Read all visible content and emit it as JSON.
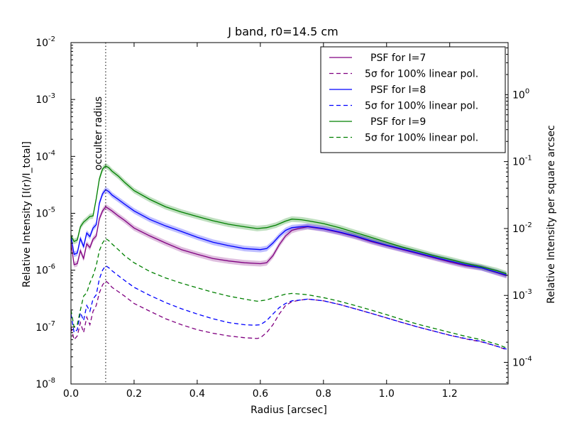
{
  "chart_data": {
    "type": "line",
    "title": "J band, r0=14.5 cm",
    "xlabel": "Radius [arcsec]",
    "ylabel": "Relative Intensity   [I(r)/I_total]",
    "ylabel_right": "Relative Intensity per square arcsec",
    "xlim": [
      0.0,
      1.385
    ],
    "ylim": [
      1e-08,
      0.01
    ],
    "yscale": "log",
    "right_ylim": [
      4.75e-05,
      6.0
    ],
    "right_yscale": "log",
    "x_ticks": [
      "0.0",
      "0.2",
      "0.4",
      "0.6",
      "0.8",
      "1.0",
      "1.2"
    ],
    "x_tick_values": [
      0.0,
      0.2,
      0.4,
      0.6,
      0.8,
      1.0,
      1.2
    ],
    "y_ticks": [
      {
        "base": "10",
        "exp": "-8",
        "value": 1e-08
      },
      {
        "base": "10",
        "exp": "-7",
        "value": 1e-07
      },
      {
        "base": "10",
        "exp": "-6",
        "value": 1e-06
      },
      {
        "base": "10",
        "exp": "-5",
        "value": 1e-05
      },
      {
        "base": "10",
        "exp": "-4",
        "value": 0.0001
      },
      {
        "base": "10",
        "exp": "-3",
        "value": 0.001
      },
      {
        "base": "10",
        "exp": "-2",
        "value": 0.01
      }
    ],
    "right_y_ticks": [
      {
        "base": "10",
        "exp": "-4",
        "value": 0.0001
      },
      {
        "base": "10",
        "exp": "-3",
        "value": 0.001
      },
      {
        "base": "10",
        "exp": "-2",
        "value": 0.01
      },
      {
        "base": "10",
        "exp": "-1",
        "value": 0.1
      },
      {
        "base": "10",
        "exp": "0",
        "value": 1
      }
    ],
    "annotation": {
      "text": "occulter radius",
      "x": 0.11
    },
    "legend_position": "top-right",
    "grid": false,
    "series": [
      {
        "name": "PSF for I=7",
        "color": "#800080",
        "style": "solid",
        "band": true,
        "points": [
          [
            0.0,
            3e-06
          ],
          [
            0.01,
            1.25e-06
          ],
          [
            0.02,
            1.3e-06
          ],
          [
            0.03,
            2.2e-06
          ],
          [
            0.04,
            1.6e-06
          ],
          [
            0.05,
            2.9e-06
          ],
          [
            0.06,
            2.5e-06
          ],
          [
            0.07,
            3.5e-06
          ],
          [
            0.08,
            4e-06
          ],
          [
            0.09,
            8e-06
          ],
          [
            0.1,
            1.1e-05
          ],
          [
            0.11,
            1.3e-05
          ],
          [
            0.12,
            1.2e-05
          ],
          [
            0.13,
            1.1e-05
          ],
          [
            0.15,
            9e-06
          ],
          [
            0.17,
            7.5e-06
          ],
          [
            0.2,
            5.5e-06
          ],
          [
            0.25,
            4e-06
          ],
          [
            0.3,
            3e-06
          ],
          [
            0.35,
            2.3e-06
          ],
          [
            0.4,
            1.9e-06
          ],
          [
            0.45,
            1.6e-06
          ],
          [
            0.5,
            1.45e-06
          ],
          [
            0.55,
            1.35e-06
          ],
          [
            0.6,
            1.3e-06
          ],
          [
            0.62,
            1.35e-06
          ],
          [
            0.64,
            1.8e-06
          ],
          [
            0.66,
            2.8e-06
          ],
          [
            0.68,
            4e-06
          ],
          [
            0.7,
            5e-06
          ],
          [
            0.72,
            5.4e-06
          ],
          [
            0.75,
            5.8e-06
          ],
          [
            0.8,
            5.3e-06
          ],
          [
            0.85,
            4.6e-06
          ],
          [
            0.9,
            3.9e-06
          ],
          [
            0.95,
            3.2e-06
          ],
          [
            1.0,
            2.7e-06
          ],
          [
            1.05,
            2.3e-06
          ],
          [
            1.1,
            1.95e-06
          ],
          [
            1.15,
            1.65e-06
          ],
          [
            1.2,
            1.4e-06
          ],
          [
            1.25,
            1.2e-06
          ],
          [
            1.3,
            1.1e-06
          ],
          [
            1.35,
            9e-07
          ],
          [
            1.38,
            8e-07
          ]
        ]
      },
      {
        "name": "5σ for 100% linear pol.",
        "color": "#800080",
        "style": "dashed",
        "band": false,
        "points": [
          [
            0.0,
            1e-07
          ],
          [
            0.01,
            6e-08
          ],
          [
            0.02,
            7e-08
          ],
          [
            0.03,
            1.2e-07
          ],
          [
            0.04,
            8e-08
          ],
          [
            0.05,
            1.5e-07
          ],
          [
            0.06,
            1.1e-07
          ],
          [
            0.07,
            1.9e-07
          ],
          [
            0.08,
            2.4e-07
          ],
          [
            0.09,
            4e-07
          ],
          [
            0.1,
            5.5e-07
          ],
          [
            0.11,
            6.5e-07
          ],
          [
            0.12,
            5.8e-07
          ],
          [
            0.13,
            5e-07
          ],
          [
            0.15,
            4.2e-07
          ],
          [
            0.17,
            3.5e-07
          ],
          [
            0.2,
            2.6e-07
          ],
          [
            0.25,
            1.9e-07
          ],
          [
            0.3,
            1.4e-07
          ],
          [
            0.35,
            1.1e-07
          ],
          [
            0.4,
            9e-08
          ],
          [
            0.45,
            7.8e-08
          ],
          [
            0.5,
            7e-08
          ],
          [
            0.55,
            6.5e-08
          ],
          [
            0.59,
            6.3e-08
          ],
          [
            0.6,
            6.5e-08
          ],
          [
            0.62,
            8e-08
          ],
          [
            0.64,
            1.1e-07
          ],
          [
            0.66,
            1.7e-07
          ],
          [
            0.68,
            2.4e-07
          ],
          [
            0.7,
            2.8e-07
          ],
          [
            0.73,
            3e-07
          ],
          [
            0.75,
            3.1e-07
          ],
          [
            0.8,
            2.9e-07
          ],
          [
            0.85,
            2.5e-07
          ],
          [
            0.9,
            2.1e-07
          ],
          [
            0.95,
            1.75e-07
          ],
          [
            1.0,
            1.45e-07
          ],
          [
            1.05,
            1.2e-07
          ],
          [
            1.1,
            1e-07
          ],
          [
            1.15,
            8.5e-08
          ],
          [
            1.2,
            7.2e-08
          ],
          [
            1.25,
            6.2e-08
          ],
          [
            1.3,
            5.5e-08
          ],
          [
            1.35,
            4.6e-08
          ],
          [
            1.38,
            4e-08
          ]
        ]
      },
      {
        "name": "PSF for I=8",
        "color": "#0000ff",
        "style": "solid",
        "band": true,
        "points": [
          [
            0.0,
            4e-06
          ],
          [
            0.01,
            1.9e-06
          ],
          [
            0.02,
            2e-06
          ],
          [
            0.03,
            3.6e-06
          ],
          [
            0.04,
            2.6e-06
          ],
          [
            0.05,
            4.5e-06
          ],
          [
            0.06,
            3.9e-06
          ],
          [
            0.07,
            5.5e-06
          ],
          [
            0.08,
            6.3e-06
          ],
          [
            0.09,
            1.5e-05
          ],
          [
            0.1,
            2.2e-05
          ],
          [
            0.11,
            2.6e-05
          ],
          [
            0.12,
            2.4e-05
          ],
          [
            0.13,
            2.1e-05
          ],
          [
            0.15,
            1.75e-05
          ],
          [
            0.17,
            1.45e-05
          ],
          [
            0.2,
            1.1e-05
          ],
          [
            0.25,
            7.8e-06
          ],
          [
            0.3,
            6e-06
          ],
          [
            0.35,
            4.8e-06
          ],
          [
            0.4,
            3.8e-06
          ],
          [
            0.45,
            3.1e-06
          ],
          [
            0.5,
            2.7e-06
          ],
          [
            0.55,
            2.4e-06
          ],
          [
            0.6,
            2.3e-06
          ],
          [
            0.62,
            2.4e-06
          ],
          [
            0.64,
            3e-06
          ],
          [
            0.66,
            4e-06
          ],
          [
            0.68,
            5e-06
          ],
          [
            0.7,
            5.6e-06
          ],
          [
            0.73,
            5.8e-06
          ],
          [
            0.75,
            5.9e-06
          ],
          [
            0.8,
            5.4e-06
          ],
          [
            0.85,
            4.7e-06
          ],
          [
            0.9,
            4e-06
          ],
          [
            0.95,
            3.3e-06
          ],
          [
            1.0,
            2.75e-06
          ],
          [
            1.05,
            2.35e-06
          ],
          [
            1.1,
            2e-06
          ],
          [
            1.15,
            1.7e-06
          ],
          [
            1.2,
            1.45e-06
          ],
          [
            1.25,
            1.25e-06
          ],
          [
            1.3,
            1.1e-06
          ],
          [
            1.35,
            9.2e-07
          ],
          [
            1.38,
            8.2e-07
          ]
        ]
      },
      {
        "name": "5σ for 100% linear pol.",
        "color": "#0000ff",
        "style": "dashed",
        "band": false,
        "points": [
          [
            0.0,
            1.7e-07
          ],
          [
            0.01,
            8e-08
          ],
          [
            0.02,
            9e-08
          ],
          [
            0.03,
            1.8e-07
          ],
          [
            0.04,
            1.3e-07
          ],
          [
            0.05,
            2.4e-07
          ],
          [
            0.06,
            1.9e-07
          ],
          [
            0.07,
            3.1e-07
          ],
          [
            0.08,
            3.7e-07
          ],
          [
            0.09,
            7e-07
          ],
          [
            0.1,
            1e-06
          ],
          [
            0.11,
            1.2e-06
          ],
          [
            0.12,
            1.1e-06
          ],
          [
            0.13,
            9.8e-07
          ],
          [
            0.15,
            8e-07
          ],
          [
            0.17,
            6.6e-07
          ],
          [
            0.2,
            5e-07
          ],
          [
            0.25,
            3.6e-07
          ],
          [
            0.3,
            2.7e-07
          ],
          [
            0.35,
            2.1e-07
          ],
          [
            0.4,
            1.7e-07
          ],
          [
            0.45,
            1.4e-07
          ],
          [
            0.5,
            1.2e-07
          ],
          [
            0.55,
            1.1e-07
          ],
          [
            0.58,
            1.08e-07
          ],
          [
            0.6,
            1.1e-07
          ],
          [
            0.62,
            1.3e-07
          ],
          [
            0.64,
            1.7e-07
          ],
          [
            0.66,
            2.2e-07
          ],
          [
            0.68,
            2.6e-07
          ],
          [
            0.7,
            2.9e-07
          ],
          [
            0.73,
            3e-07
          ],
          [
            0.75,
            3.1e-07
          ],
          [
            0.8,
            2.9e-07
          ],
          [
            0.85,
            2.5e-07
          ],
          [
            0.9,
            2.1e-07
          ],
          [
            0.95,
            1.75e-07
          ],
          [
            1.0,
            1.45e-07
          ],
          [
            1.05,
            1.2e-07
          ],
          [
            1.1,
            1e-07
          ],
          [
            1.15,
            8.5e-08
          ],
          [
            1.2,
            7.2e-08
          ],
          [
            1.25,
            6.3e-08
          ],
          [
            1.3,
            5.6e-08
          ],
          [
            1.35,
            4.6e-08
          ],
          [
            1.38,
            4.1e-08
          ]
        ]
      },
      {
        "name": "PSF for I=9",
        "color": "#008000",
        "style": "solid",
        "band": true,
        "points": [
          [
            0.0,
            4e-06
          ],
          [
            0.01,
            3.2e-06
          ],
          [
            0.02,
            3.4e-06
          ],
          [
            0.03,
            5.8e-06
          ],
          [
            0.04,
            7e-06
          ],
          [
            0.05,
            7.8e-06
          ],
          [
            0.06,
            8.8e-06
          ],
          [
            0.07,
            9e-06
          ],
          [
            0.08,
            1.8e-05
          ],
          [
            0.09,
            4e-05
          ],
          [
            0.1,
            6e-05
          ],
          [
            0.11,
            6.8e-05
          ],
          [
            0.12,
            6.3e-05
          ],
          [
            0.13,
            5.5e-05
          ],
          [
            0.15,
            4.5e-05
          ],
          [
            0.17,
            3.5e-05
          ],
          [
            0.2,
            2.5e-05
          ],
          [
            0.25,
            1.75e-05
          ],
          [
            0.3,
            1.3e-05
          ],
          [
            0.35,
            1.05e-05
          ],
          [
            0.4,
            8.8e-06
          ],
          [
            0.45,
            7.4e-06
          ],
          [
            0.5,
            6.4e-06
          ],
          [
            0.55,
            5.8e-06
          ],
          [
            0.59,
            5.4e-06
          ],
          [
            0.62,
            5.6e-06
          ],
          [
            0.65,
            6.2e-06
          ],
          [
            0.68,
            7.3e-06
          ],
          [
            0.7,
            7.9e-06
          ],
          [
            0.73,
            7.7e-06
          ],
          [
            0.75,
            7.4e-06
          ],
          [
            0.8,
            6.6e-06
          ],
          [
            0.85,
            5.6e-06
          ],
          [
            0.9,
            4.6e-06
          ],
          [
            0.95,
            3.8e-06
          ],
          [
            1.0,
            3.1e-06
          ],
          [
            1.05,
            2.55e-06
          ],
          [
            1.1,
            2.15e-06
          ],
          [
            1.15,
            1.8e-06
          ],
          [
            1.2,
            1.55e-06
          ],
          [
            1.25,
            1.32e-06
          ],
          [
            1.3,
            1.15e-06
          ],
          [
            1.35,
            9.8e-07
          ],
          [
            1.38,
            8.6e-07
          ]
        ]
      },
      {
        "name": "5σ for 100% linear pol.",
        "color": "#008000",
        "style": "dashed",
        "band": false,
        "points": [
          [
            0.0,
            2e-07
          ],
          [
            0.01,
            1e-07
          ],
          [
            0.02,
            1.1e-07
          ],
          [
            0.03,
            2e-07
          ],
          [
            0.04,
            3.5e-07
          ],
          [
            0.05,
            4e-07
          ],
          [
            0.06,
            6e-07
          ],
          [
            0.07,
            8e-07
          ],
          [
            0.08,
            1.2e-06
          ],
          [
            0.09,
            2.2e-06
          ],
          [
            0.1,
            3e-06
          ],
          [
            0.11,
            3.6e-06
          ],
          [
            0.12,
            3.3e-06
          ],
          [
            0.13,
            2.9e-06
          ],
          [
            0.15,
            2.3e-06
          ],
          [
            0.17,
            1.8e-06
          ],
          [
            0.2,
            1.35e-06
          ],
          [
            0.25,
            9.5e-07
          ],
          [
            0.3,
            7.3e-07
          ],
          [
            0.35,
            5.9e-07
          ],
          [
            0.4,
            4.9e-07
          ],
          [
            0.45,
            4.1e-07
          ],
          [
            0.5,
            3.5e-07
          ],
          [
            0.55,
            3.1e-07
          ],
          [
            0.59,
            2.85e-07
          ],
          [
            0.62,
            3e-07
          ],
          [
            0.65,
            3.4e-07
          ],
          [
            0.68,
            3.8e-07
          ],
          [
            0.7,
            3.9e-07
          ],
          [
            0.73,
            3.8e-07
          ],
          [
            0.75,
            3.7e-07
          ],
          [
            0.8,
            3.3e-07
          ],
          [
            0.85,
            2.85e-07
          ],
          [
            0.9,
            2.4e-07
          ],
          [
            0.95,
            2e-07
          ],
          [
            1.0,
            1.65e-07
          ],
          [
            1.05,
            1.35e-07
          ],
          [
            1.1,
            1.12e-07
          ],
          [
            1.15,
            9.5e-08
          ],
          [
            1.2,
            8.1e-08
          ],
          [
            1.25,
            6.9e-08
          ],
          [
            1.3,
            6e-08
          ],
          [
            1.35,
            5e-08
          ],
          [
            1.38,
            4.3e-08
          ]
        ]
      }
    ]
  }
}
